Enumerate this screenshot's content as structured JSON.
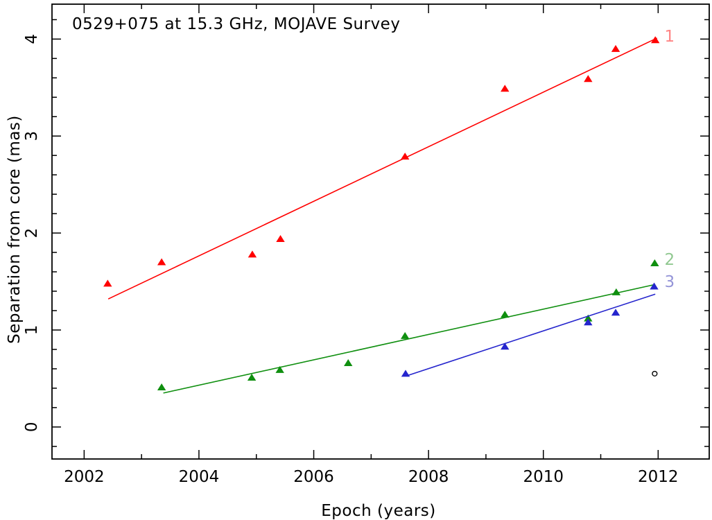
{
  "chart_data": {
    "type": "scatter",
    "title": "0529+075 at 15.3 GHz, MOJAVE Survey",
    "xlabel": "Epoch (years)",
    "ylabel": "Separation from core (mas)",
    "xlim": [
      2001.44,
      2012.89
    ],
    "ylim": [
      -0.33,
      4.36
    ],
    "x_major_ticks": [
      2002,
      2004,
      2006,
      2008,
      2010,
      2012
    ],
    "x_minor_ticks": [
      2003,
      2005,
      2007,
      2009,
      2011
    ],
    "y_major_ticks": [
      0,
      1,
      2,
      3,
      4
    ],
    "y_minor_step": 0.2,
    "grid": false,
    "legend_position": "inline-right",
    "frame_color": "#000000",
    "series": [
      {
        "name": "component-1",
        "label": "1",
        "color": "#ff0000",
        "label_color": "#ff8585",
        "marker": "triangle-filled",
        "points": [
          [
            2002.41,
            1.48
          ],
          [
            2003.35,
            1.7
          ],
          [
            2004.93,
            1.78
          ],
          [
            2005.42,
            1.94
          ],
          [
            2007.59,
            2.79
          ],
          [
            2009.33,
            3.49
          ],
          [
            2010.78,
            3.59
          ],
          [
            2011.26,
            3.9
          ],
          [
            2011.95,
            3.99
          ]
        ],
        "fit_line": {
          "x1": 2002.42,
          "y1": 1.32,
          "x2": 2011.98,
          "y2": 4.01
        },
        "label_pos": [
          2012.2,
          4.03
        ]
      },
      {
        "name": "component-2",
        "label": "2",
        "color": "#0f8f0f",
        "label_color": "#90c890",
        "marker": "triangle-filled",
        "points": [
          [
            2003.35,
            0.41
          ],
          [
            2004.92,
            0.51
          ],
          [
            2005.41,
            0.59
          ],
          [
            2006.6,
            0.66
          ],
          [
            2007.59,
            0.94
          ],
          [
            2009.33,
            1.16
          ],
          [
            2010.78,
            1.12
          ],
          [
            2011.27,
            1.39
          ],
          [
            2011.94,
            1.69
          ]
        ],
        "fit_line": {
          "x1": 2003.38,
          "y1": 0.35,
          "x2": 2011.95,
          "y2": 1.47
        },
        "label_pos": [
          2012.2,
          1.73
        ]
      },
      {
        "name": "component-3",
        "label": "3",
        "color": "#2525cd",
        "label_color": "#9595d8",
        "marker": "triangle-filled",
        "points": [
          [
            2007.6,
            0.55
          ],
          [
            2009.33,
            0.83
          ],
          [
            2010.78,
            1.08
          ],
          [
            2011.26,
            1.18
          ],
          [
            2011.93,
            1.45
          ]
        ],
        "fit_line": {
          "x1": 2007.63,
          "y1": 0.53,
          "x2": 2011.95,
          "y2": 1.37
        },
        "label_pos": [
          2012.2,
          1.5
        ]
      }
    ],
    "extra_points": [
      {
        "name": "unlabeled-component",
        "marker": "circle-open",
        "color": "#000000",
        "x": 2011.94,
        "y": 0.55
      }
    ]
  }
}
